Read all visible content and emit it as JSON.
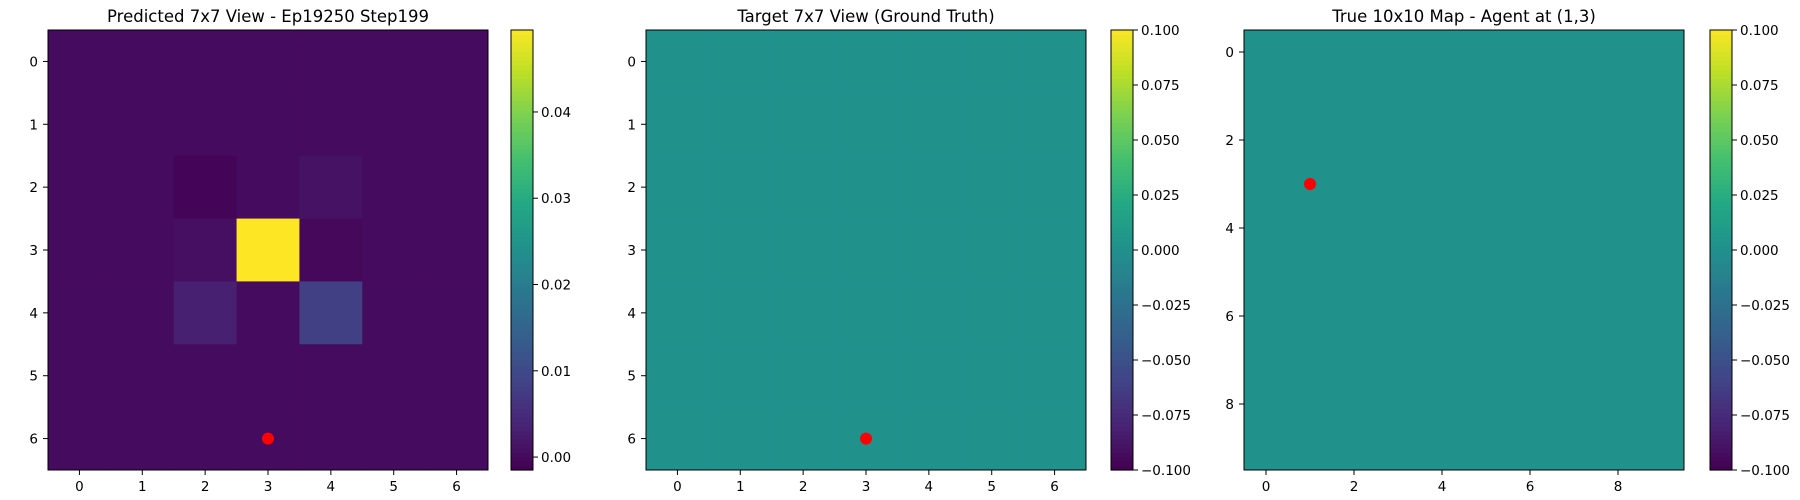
{
  "chart_data": [
    {
      "type": "heatmap",
      "title": "Predicted 7x7 View - Ep19250 Step199",
      "rows": 7,
      "cols": 7,
      "values": [
        [
          0.0,
          0.0,
          0.0,
          0.0,
          0.0,
          0.0,
          0.0
        ],
        [
          0.0,
          0.0,
          0.0,
          0.0,
          0.0,
          0.0,
          0.0
        ],
        [
          0.0,
          0.0,
          -0.001,
          0.0,
          0.001,
          0.0,
          0.0
        ],
        [
          0.0,
          0.0,
          0.0005,
          0.0495,
          -0.0005,
          0.0,
          0.0
        ],
        [
          0.0,
          0.0,
          0.003,
          0.0,
          0.008,
          0.0,
          0.0
        ],
        [
          0.0,
          0.0,
          0.0,
          0.0,
          0.0,
          0.0,
          0.0
        ],
        [
          0.0,
          0.0,
          0.0,
          0.0,
          0.0,
          0.0,
          0.0
        ]
      ],
      "xticks": [
        "0",
        "1",
        "2",
        "3",
        "4",
        "5",
        "6"
      ],
      "yticks": [
        "0",
        "1",
        "2",
        "3",
        "4",
        "5",
        "6"
      ],
      "vmin": -0.0015,
      "vmax": 0.0495,
      "colorbar_ticks": [
        "0.00",
        "0.01",
        "0.02",
        "0.03",
        "0.04"
      ],
      "colorbar_tick_values": [
        0.0,
        0.01,
        0.02,
        0.03,
        0.04
      ],
      "colormap": "viridis",
      "marker": {
        "x": 3,
        "y": 6,
        "color": "#ff0000"
      }
    },
    {
      "type": "heatmap",
      "title": "Target 7x7 View (Ground Truth)",
      "rows": 7,
      "cols": 7,
      "values": [
        [
          0,
          0,
          0,
          0,
          0,
          0,
          0
        ],
        [
          0,
          0,
          0,
          0,
          0,
          0,
          0
        ],
        [
          0,
          0,
          0,
          0,
          0,
          0,
          0
        ],
        [
          0,
          0,
          0,
          0,
          0,
          0,
          0
        ],
        [
          0,
          0,
          0,
          0,
          0,
          0,
          0
        ],
        [
          0,
          0,
          0,
          0,
          0,
          0,
          0
        ],
        [
          0,
          0,
          0,
          0,
          0,
          0,
          0
        ]
      ],
      "xticks": [
        "0",
        "1",
        "2",
        "3",
        "4",
        "5",
        "6"
      ],
      "yticks": [
        "0",
        "1",
        "2",
        "3",
        "4",
        "5",
        "6"
      ],
      "vmin": -0.1,
      "vmax": 0.1,
      "colorbar_ticks": [
        "0.100",
        "0.075",
        "0.050",
        "0.025",
        "0.000",
        "−0.025",
        "−0.050",
        "−0.075",
        "−0.100"
      ],
      "colorbar_tick_values": [
        0.1,
        0.075,
        0.05,
        0.025,
        0.0,
        -0.025,
        -0.05,
        -0.075,
        -0.1
      ],
      "colormap": "viridis",
      "marker": {
        "x": 3,
        "y": 6,
        "color": "#ff0000"
      }
    },
    {
      "type": "heatmap",
      "title": "True 10x10 Map - Agent at (1,3)",
      "rows": 10,
      "cols": 10,
      "uniform_value": 0,
      "xticks": [
        "0",
        "2",
        "4",
        "6",
        "8"
      ],
      "xtick_values": [
        0,
        2,
        4,
        6,
        8
      ],
      "yticks": [
        "0",
        "2",
        "4",
        "6",
        "8"
      ],
      "ytick_values": [
        0,
        2,
        4,
        6,
        8
      ],
      "vmin": -0.1,
      "vmax": 0.1,
      "colorbar_ticks": [
        "0.100",
        "0.075",
        "0.050",
        "0.025",
        "0.000",
        "−0.025",
        "−0.050",
        "−0.075",
        "−0.100"
      ],
      "colorbar_tick_values": [
        0.1,
        0.075,
        0.05,
        0.025,
        0.0,
        -0.025,
        -0.05,
        -0.075,
        -0.1
      ],
      "colormap": "viridis",
      "marker": {
        "x": 1,
        "y": 3,
        "color": "#ff0000"
      }
    }
  ]
}
